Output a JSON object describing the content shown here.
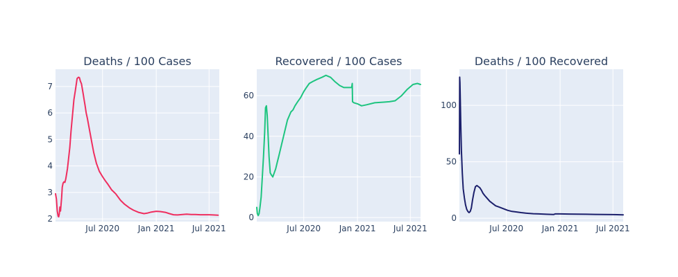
{
  "chart_data": [
    {
      "type": "line",
      "title": "Deaths / 100 Cases",
      "xlabel": "",
      "ylabel": "",
      "x_ticks": [
        "Jul 2020",
        "Jan 2021",
        "Jul 2021"
      ],
      "y_ticks": [
        2,
        3,
        4,
        5,
        6,
        7
      ],
      "xlim": [
        "2020-01-22",
        "2021-08-05"
      ],
      "ylim": [
        1.9,
        7.65
      ],
      "grid": true,
      "color": "#EF2D5E",
      "series": [
        {
          "x": [
            "2020-01-22",
            "2020-01-25",
            "2020-01-28",
            "2020-01-31",
            "2020-02-02",
            "2020-02-04",
            "2020-02-06",
            "2020-02-08",
            "2020-02-10",
            "2020-02-12",
            "2020-02-14",
            "2020-02-17",
            "2020-02-20",
            "2020-02-23",
            "2020-02-26",
            "2020-02-29",
            "2020-03-03",
            "2020-03-07",
            "2020-03-11",
            "2020-03-15",
            "2020-03-20",
            "2020-03-25",
            "2020-03-30",
            "2020-04-05",
            "2020-04-10",
            "2020-04-13",
            "2020-04-16",
            "2020-04-20",
            "2020-04-23",
            "2020-04-26",
            "2020-04-29",
            "2020-05-02",
            "2020-05-06",
            "2020-05-10",
            "2020-05-15",
            "2020-05-20",
            "2020-05-25",
            "2020-06-01",
            "2020-06-10",
            "2020-06-20",
            "2020-07-01",
            "2020-07-10",
            "2020-07-20",
            "2020-08-01",
            "2020-08-15",
            "2020-09-01",
            "2020-09-15",
            "2020-10-01",
            "2020-10-15",
            "2020-11-01",
            "2020-11-20",
            "2020-12-01",
            "2020-12-15",
            "2021-01-01",
            "2021-01-15",
            "2021-02-01",
            "2021-02-15",
            "2021-03-01",
            "2021-03-15",
            "2021-04-01",
            "2021-04-15",
            "2021-05-01",
            "2021-05-15",
            "2021-06-01",
            "2021-06-15",
            "2021-07-01",
            "2021-07-15",
            "2021-08-01"
          ],
          "y": [
            2.95,
            2.75,
            2.3,
            2.1,
            2.08,
            2.2,
            2.45,
            2.3,
            2.55,
            2.8,
            3.2,
            3.35,
            3.4,
            3.38,
            3.5,
            3.7,
            3.9,
            4.3,
            4.7,
            5.3,
            5.9,
            6.5,
            6.85,
            7.3,
            7.35,
            7.33,
            7.2,
            7.1,
            6.9,
            6.7,
            6.5,
            6.3,
            6.0,
            5.8,
            5.5,
            5.2,
            4.9,
            4.5,
            4.1,
            3.8,
            3.6,
            3.45,
            3.3,
            3.1,
            2.95,
            2.7,
            2.55,
            2.42,
            2.33,
            2.25,
            2.2,
            2.22,
            2.26,
            2.29,
            2.28,
            2.25,
            2.2,
            2.16,
            2.15,
            2.17,
            2.18,
            2.17,
            2.17,
            2.16,
            2.16,
            2.16,
            2.15,
            2.14
          ]
        }
      ]
    },
    {
      "type": "line",
      "title": "Recovered / 100 Cases",
      "xlabel": "",
      "ylabel": "",
      "x_ticks": [
        "Jul 2020",
        "Jan 2021",
        "Jul 2021"
      ],
      "y_ticks": [
        0,
        20,
        40,
        60
      ],
      "xlim": [
        "2020-01-22",
        "2021-08-05"
      ],
      "ylim": [
        -2,
        73
      ],
      "grid": true,
      "color": "#1DC47F",
      "series": [
        {
          "x": [
            "2020-01-22",
            "2020-01-24",
            "2020-01-27",
            "2020-01-30",
            "2020-02-02",
            "2020-02-06",
            "2020-02-10",
            "2020-02-14",
            "2020-02-18",
            "2020-02-21",
            "2020-02-24",
            "2020-02-27",
            "2020-03-01",
            "2020-03-04",
            "2020-03-08",
            "2020-03-12",
            "2020-03-17",
            "2020-03-22",
            "2020-03-27",
            "2020-04-01",
            "2020-04-06",
            "2020-04-11",
            "2020-04-16",
            "2020-04-21",
            "2020-04-26",
            "2020-05-01",
            "2020-05-06",
            "2020-05-12",
            "2020-05-18",
            "2020-05-25",
            "2020-06-01",
            "2020-06-10",
            "2020-06-20",
            "2020-07-01",
            "2020-07-10",
            "2020-07-20",
            "2020-08-01",
            "2020-08-15",
            "2020-09-01",
            "2020-09-15",
            "2020-10-01",
            "2020-10-15",
            "2020-11-01",
            "2020-11-15",
            "2020-11-25",
            "2020-12-05",
            "2020-12-12",
            "2020-12-14",
            "2020-12-15",
            "2020-12-20",
            "2021-01-01",
            "2021-01-15",
            "2021-02-01",
            "2021-03-01",
            "2021-04-01",
            "2021-04-20",
            "2021-05-10",
            "2021-06-01",
            "2021-06-20",
            "2021-07-10",
            "2021-07-25",
            "2021-08-05"
          ],
          "y": [
            5,
            2,
            1,
            2,
            5,
            10,
            20,
            30,
            42,
            54,
            55,
            50,
            40,
            30,
            22,
            21,
            20,
            22,
            24,
            27,
            30,
            33,
            36,
            39,
            42,
            45,
            48,
            50,
            52,
            53,
            55,
            57,
            59,
            62,
            64,
            66,
            67,
            68,
            69,
            70,
            69,
            67,
            65,
            64,
            64,
            64,
            64,
            66,
            57,
            56.5,
            56,
            55,
            55.5,
            56.5,
            56.8,
            57,
            57.5,
            60,
            63,
            65.5,
            66,
            65.5
          ]
        }
      ]
    },
    {
      "type": "line",
      "title": "Deaths / 100 Recovered",
      "xlabel": "",
      "ylabel": "",
      "x_ticks": [
        "Jul 2020",
        "Jan 2021",
        "Jul 2021"
      ],
      "y_ticks": [
        0,
        50,
        100
      ],
      "xlim": [
        "2020-01-22",
        "2021-08-05"
      ],
      "ylim": [
        -3,
        132
      ],
      "grid": true,
      "color": "#1B1F6B",
      "series": [
        {
          "x": [
            "2020-01-22",
            "2020-01-23",
            "2020-01-24",
            "2020-01-25",
            "2020-01-27",
            "2020-01-29",
            "2020-02-01",
            "2020-02-04",
            "2020-02-08",
            "2020-02-12",
            "2020-02-16",
            "2020-02-20",
            "2020-02-24",
            "2020-02-28",
            "2020-03-03",
            "2020-03-07",
            "2020-03-12",
            "2020-03-17",
            "2020-03-22",
            "2020-03-27",
            "2020-04-01",
            "2020-04-06",
            "2020-04-12",
            "2020-04-18",
            "2020-04-25",
            "2020-05-05",
            "2020-05-15",
            "2020-05-25",
            "2020-06-05",
            "2020-06-15",
            "2020-06-25",
            "2020-07-05",
            "2020-07-20",
            "2020-08-05",
            "2020-08-20",
            "2020-09-05",
            "2020-10-01",
            "2020-10-20",
            "2020-11-15",
            "2020-12-10",
            "2020-12-15",
            "2021-01-01",
            "2021-02-01",
            "2021-03-01",
            "2021-04-01",
            "2021-05-01",
            "2021-06-01",
            "2021-07-01",
            "2021-08-05"
          ],
          "y": [
            57,
            125,
            120,
            105,
            80,
            60,
            40,
            26,
            18,
            12,
            8,
            6,
            5,
            6,
            9,
            16,
            23,
            28,
            29,
            28,
            27,
            25,
            22,
            20,
            18,
            15,
            13,
            11,
            10,
            9,
            8,
            7,
            6,
            5.5,
            5,
            4.5,
            4,
            3.8,
            3.5,
            3.3,
            3.8,
            3.8,
            3.7,
            3.6,
            3.5,
            3.4,
            3.3,
            3.2,
            3.0
          ]
        }
      ]
    }
  ]
}
